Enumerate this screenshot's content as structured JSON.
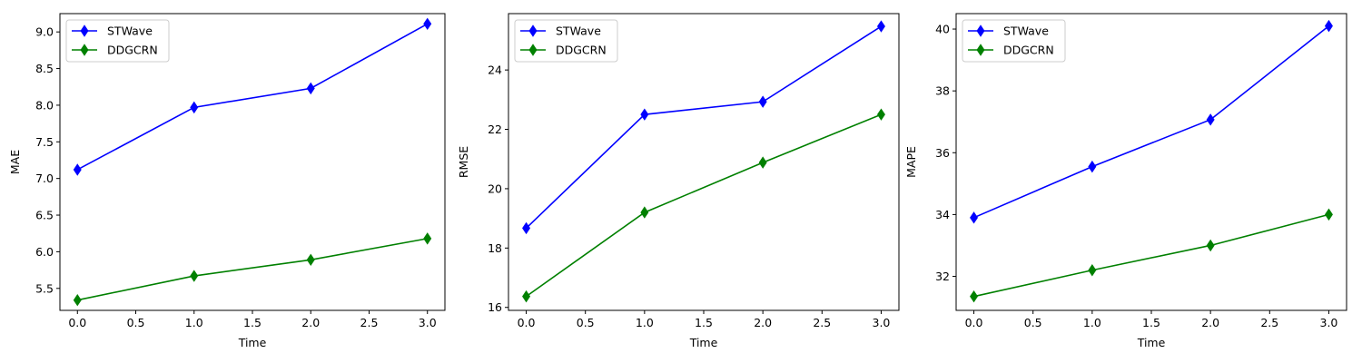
{
  "chart_data": [
    {
      "type": "line",
      "xlabel": "Time",
      "ylabel": "MAE",
      "x": [
        0,
        1,
        2,
        3
      ],
      "xlim": [
        -0.15,
        3.15
      ],
      "ylim": [
        5.2,
        9.25
      ],
      "xticks": [
        0,
        0.5,
        1,
        1.5,
        2,
        2.5,
        3
      ],
      "yticks": [
        5.5,
        6.0,
        6.5,
        7.0,
        7.5,
        8.0,
        8.5,
        9.0
      ],
      "ytick_decimals": 1,
      "legend": "top-left",
      "series": [
        {
          "name": "STWave",
          "color": "#0000ff",
          "marker": "thin_diamond",
          "values": [
            7.12,
            7.97,
            8.23,
            9.11
          ]
        },
        {
          "name": "DDGCRN",
          "color": "#008000",
          "marker": "thin_diamond",
          "values": [
            5.34,
            5.67,
            5.89,
            6.18
          ]
        }
      ]
    },
    {
      "type": "line",
      "xlabel": "Time",
      "ylabel": "RMSE",
      "x": [
        0,
        1,
        2,
        3
      ],
      "xlim": [
        -0.15,
        3.15
      ],
      "ylim": [
        15.9,
        25.9
      ],
      "xticks": [
        0,
        0.5,
        1,
        1.5,
        2,
        2.5,
        3
      ],
      "yticks": [
        16,
        18,
        20,
        22,
        24
      ],
      "ytick_decimals": 0,
      "legend": "top-left",
      "series": [
        {
          "name": "STWave",
          "color": "#0000ff",
          "marker": "thin_diamond",
          "values": [
            18.67,
            22.5,
            22.93,
            25.47
          ]
        },
        {
          "name": "DDGCRN",
          "color": "#008000",
          "marker": "thin_diamond",
          "values": [
            16.37,
            19.2,
            20.88,
            22.5
          ]
        }
      ]
    },
    {
      "type": "line",
      "xlabel": "Time",
      "ylabel": "MAPE",
      "x": [
        0,
        1,
        2,
        3
      ],
      "xlim": [
        -0.15,
        3.15
      ],
      "ylim": [
        30.9,
        40.5
      ],
      "xticks": [
        0,
        0.5,
        1,
        1.5,
        2,
        2.5,
        3
      ],
      "yticks": [
        32,
        34,
        36,
        38,
        40
      ],
      "ytick_decimals": 0,
      "legend": "top-left",
      "series": [
        {
          "name": "STWave",
          "color": "#0000ff",
          "marker": "thin_diamond",
          "values": [
            33.9,
            35.55,
            37.07,
            40.1
          ]
        },
        {
          "name": "DDGCRN",
          "color": "#008000",
          "marker": "thin_diamond",
          "values": [
            31.35,
            32.2,
            33.0,
            34.0
          ]
        }
      ]
    }
  ]
}
